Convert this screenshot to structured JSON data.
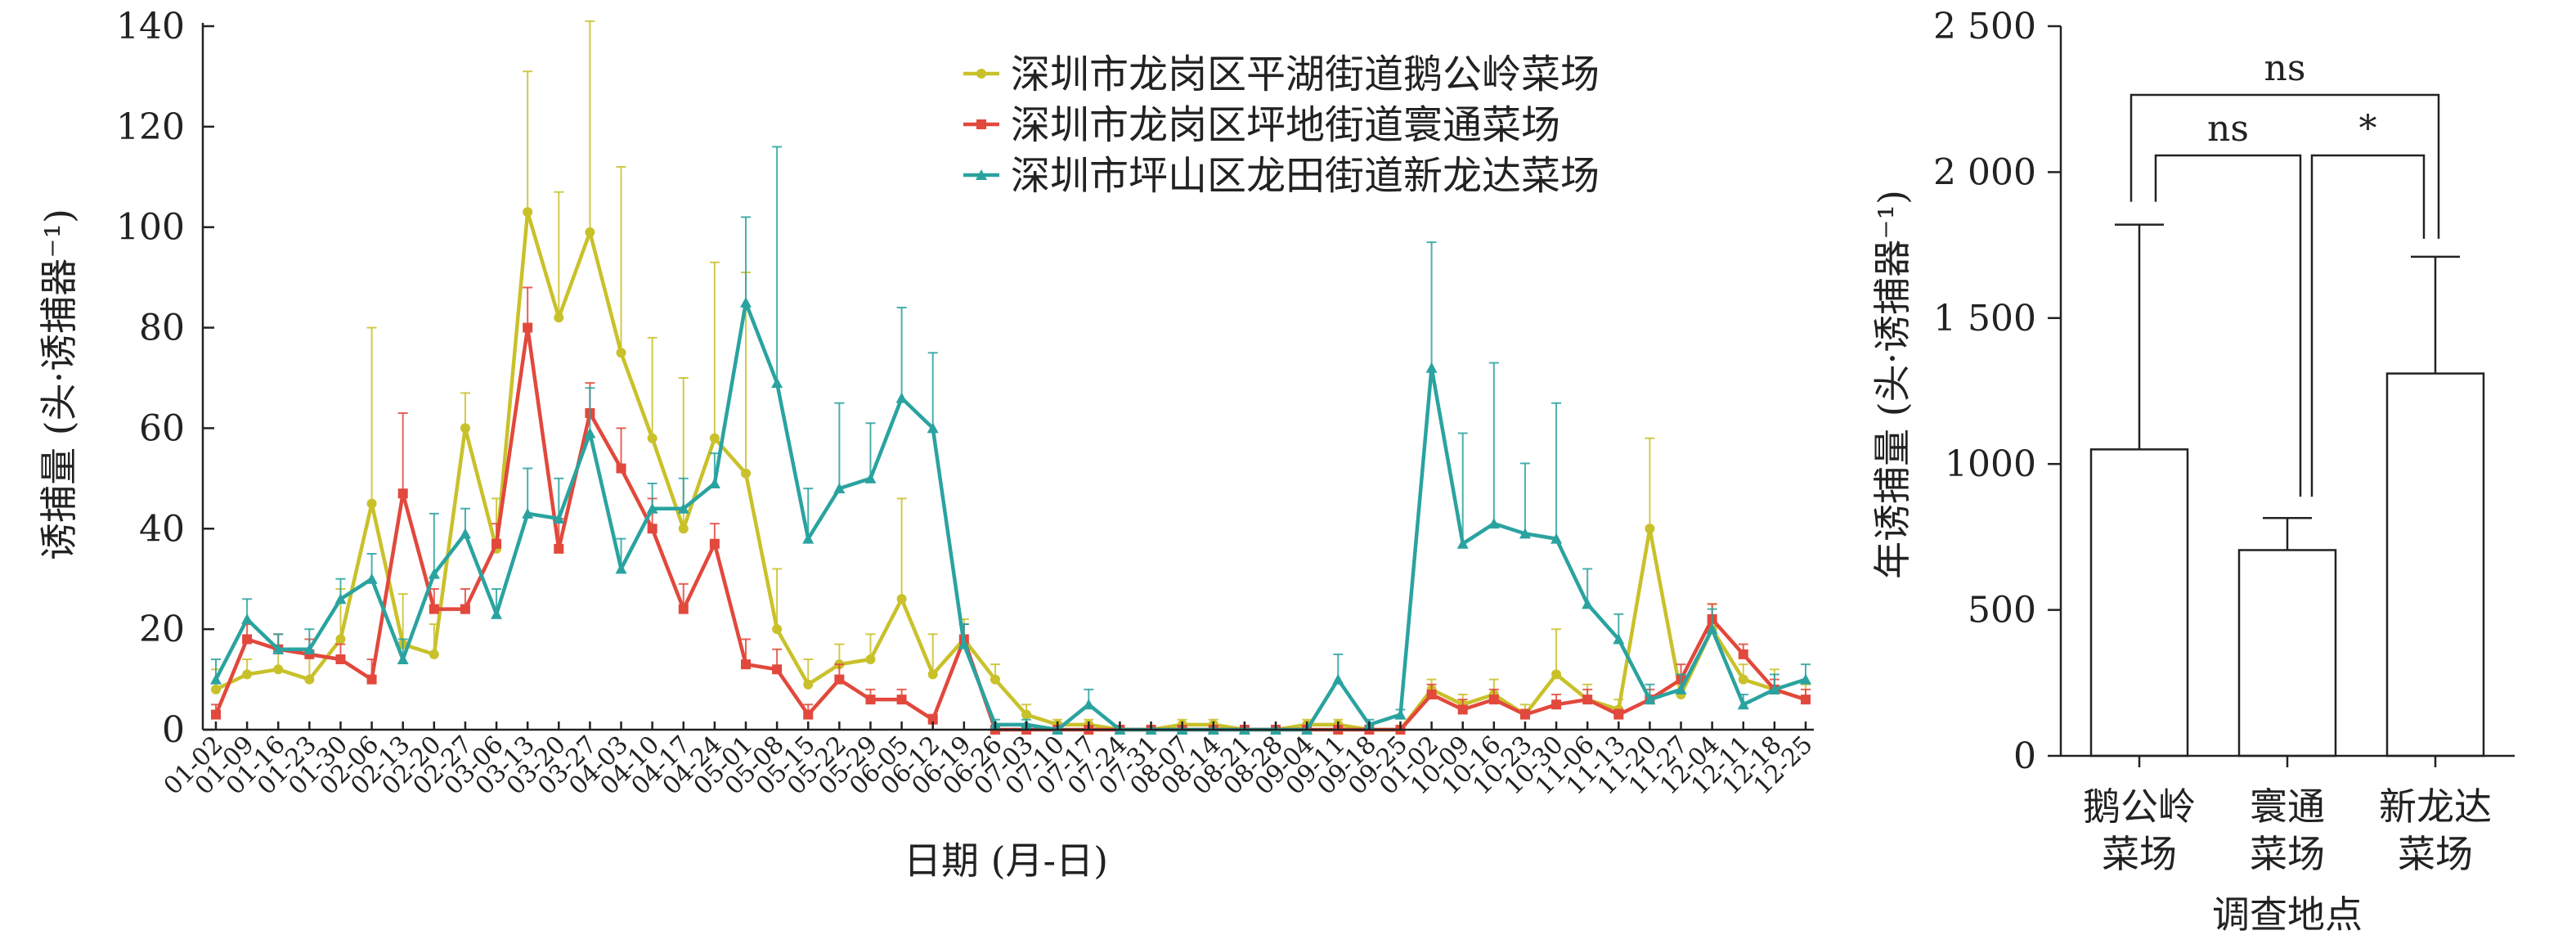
{
  "chart_data": [
    {
      "type": "line",
      "xlabel": "日期 (月-日)",
      "ylabel": "诱捕量 (头·诱捕器⁻¹)",
      "ylim": [
        0,
        140
      ],
      "yticks": [
        "0",
        "20",
        "40",
        "60",
        "80",
        "100",
        "120",
        "140"
      ],
      "legend_position": "top-center",
      "grid": false,
      "categories": [
        "01-02",
        "01-09",
        "01-16",
        "01-23",
        "01-30",
        "02-06",
        "02-13",
        "02-20",
        "02-27",
        "03-06",
        "03-13",
        "03-20",
        "03-27",
        "04-03",
        "04-10",
        "04-17",
        "04-24",
        "05-01",
        "05-08",
        "05-15",
        "05-22",
        "05-29",
        "06-05",
        "06-12",
        "06-19",
        "06-26",
        "07-03",
        "07-10",
        "07-17",
        "07-24",
        "07-31",
        "08-07",
        "08-14",
        "08-21",
        "08-28",
        "09-04",
        "09-11",
        "09-18",
        "09-25",
        "01-02",
        "10-09",
        "10-16",
        "10-23",
        "10-30",
        "11-06",
        "11-13",
        "11-20",
        "11-27",
        "12-04",
        "12-11",
        "12-18",
        "12-25"
      ],
      "series": [
        {
          "name": "深圳市龙岗区平湖街道鹅公岭菜场",
          "color": "#c9c12a",
          "marker": "circle",
          "values": [
            8,
            11,
            12,
            10,
            18,
            45,
            17,
            15,
            60,
            36,
            103,
            82,
            99,
            75,
            58,
            40,
            58,
            51,
            20,
            9,
            13,
            14,
            26,
            11,
            18,
            10,
            3,
            1,
            1,
            0,
            0,
            1,
            1,
            0,
            0,
            1,
            1,
            0,
            0,
            8,
            5,
            7,
            3,
            11,
            6,
            4,
            40,
            7,
            20,
            10,
            8,
            6
          ],
          "errors": [
            4,
            3,
            4,
            5,
            10,
            35,
            10,
            6,
            7,
            10,
            28,
            25,
            42,
            37,
            20,
            30,
            35,
            40,
            12,
            5,
            4,
            5,
            20,
            8,
            4,
            3,
            2,
            1,
            1,
            0,
            0,
            1,
            1,
            0,
            0,
            1,
            1,
            0,
            0,
            2,
            2,
            3,
            2,
            9,
            3,
            2,
            18,
            3,
            5,
            3,
            4,
            3
          ]
        },
        {
          "name": "深圳市龙岗区坪地街道寰通菜场",
          "color": "#e2483c",
          "marker": "square",
          "values": [
            3,
            18,
            16,
            15,
            14,
            10,
            47,
            24,
            24,
            37,
            80,
            36,
            63,
            52,
            40,
            24,
            37,
            13,
            12,
            3,
            10,
            6,
            6,
            2,
            18,
            0,
            0,
            0,
            0,
            0,
            0,
            0,
            0,
            0,
            0,
            0,
            0,
            0,
            0,
            7,
            4,
            6,
            3,
            5,
            6,
            3,
            6,
            10,
            22,
            15,
            8,
            6
          ],
          "errors": [
            2,
            3,
            3,
            3,
            3,
            4,
            16,
            4,
            4,
            4,
            8,
            6,
            6,
            8,
            6,
            5,
            4,
            5,
            4,
            2,
            3,
            2,
            2,
            1,
            3,
            0,
            0,
            0,
            0,
            0,
            0,
            0,
            0,
            0,
            0,
            0,
            0,
            0,
            0,
            2,
            2,
            2,
            1,
            2,
            2,
            1,
            2,
            3,
            3,
            2,
            2,
            2
          ],
          "note_first_value": ""
        },
        {
          "name": "深圳市坪山区龙田街道新龙达菜场",
          "color": "#2aa3a0",
          "marker": "triangle",
          "values": [
            10,
            22,
            16,
            16,
            26,
            30,
            14,
            31,
            39,
            23,
            43,
            42,
            59,
            32,
            44,
            44,
            49,
            85,
            69,
            38,
            48,
            50,
            66,
            60,
            17,
            1,
            1,
            0,
            5,
            0,
            0,
            0,
            0,
            0,
            0,
            0,
            10,
            1,
            3,
            72,
            37,
            41,
            39,
            38,
            25,
            18,
            6,
            8,
            20,
            5,
            8,
            10
          ],
          "errors": [
            4,
            4,
            3,
            4,
            4,
            5,
            4,
            12,
            5,
            5,
            9,
            8,
            9,
            6,
            5,
            6,
            6,
            17,
            47,
            10,
            17,
            11,
            18,
            15,
            4,
            1,
            1,
            0,
            3,
            0,
            0,
            0,
            0,
            0,
            0,
            0,
            5,
            1,
            1,
            25,
            22,
            32,
            14,
            27,
            7,
            5,
            3,
            3,
            4,
            2,
            3,
            3
          ]
        }
      ]
    },
    {
      "type": "bar",
      "xlabel": "调查地点",
      "ylabel": "年诱捕量 (头·诱捕器⁻¹)",
      "ylim": [
        0,
        2500
      ],
      "yticks": [
        "0",
        "500",
        "1000",
        "1 500",
        "2 000",
        "2 500"
      ],
      "categories": [
        "鹅公岭\n菜场",
        "寰通\n菜场",
        "新龙达\n菜场"
      ],
      "category_lines": [
        [
          "鹅公岭",
          "菜场"
        ],
        [
          "寰通",
          "菜场"
        ],
        [
          "新龙达",
          "菜场"
        ]
      ],
      "values": [
        1050,
        705,
        1310
      ],
      "errors": [
        770,
        110,
        400
      ],
      "significance": [
        {
          "pair": [
            0,
            2
          ],
          "label": "ns"
        },
        {
          "pair": [
            0,
            1
          ],
          "label": "ns"
        },
        {
          "pair": [
            1,
            2
          ],
          "label": "*"
        }
      ]
    }
  ]
}
